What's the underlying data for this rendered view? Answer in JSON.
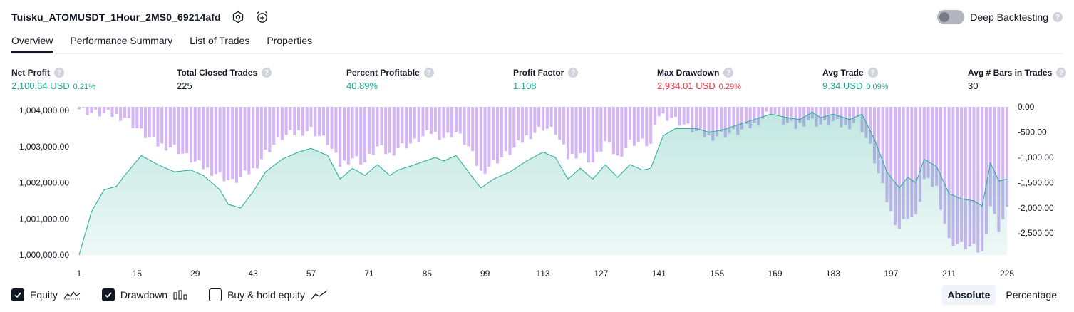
{
  "header": {
    "title": "Tuisku_ATOMUSDT_1Hour_2MS0_69214afd",
    "settings_icon": "gear-icon",
    "alert_icon": "alarm-clock-plus-icon",
    "deep_backtesting_label": "Deep Backtesting",
    "help_glyph": "?"
  },
  "tabs": [
    {
      "label": "Overview"
    },
    {
      "label": "Performance Summary"
    },
    {
      "label": "List of Trades"
    },
    {
      "label": "Properties"
    }
  ],
  "metrics": [
    {
      "label": "Net Profit",
      "value": "2,100.64 USD",
      "pct": "0.21%"
    },
    {
      "label": "Total Closed Trades",
      "value": "225",
      "pct": ""
    },
    {
      "label": "Percent Profitable",
      "value": "40.89%",
      "pct": ""
    },
    {
      "label": "Profit Factor",
      "value": "1.108",
      "pct": ""
    },
    {
      "label": "Max Drawdown",
      "value": "2,934.01 USD",
      "pct": "0.29%"
    },
    {
      "label": "Avg Trade",
      "value": "9.34 USD",
      "pct": "0.09%"
    },
    {
      "label": "Avg # Bars in Trades",
      "value": "30",
      "pct": ""
    }
  ],
  "colors": {
    "positive": "#22ab94",
    "negative": "#f23645",
    "equity_line": "#22ab94",
    "drawdown_bar": "#d4b5f5"
  },
  "chart_data": {
    "type": "area",
    "x_ticks": [
      "1",
      "15",
      "29",
      "43",
      "57",
      "71",
      "85",
      "99",
      "113",
      "127",
      "141",
      "155",
      "169",
      "183",
      "197",
      "211",
      "225"
    ],
    "y_left_ticks": [
      "1,004,000.00",
      "1,003,000.00",
      "1,002,000.00",
      "1,001,000.00",
      "1,000,000.00"
    ],
    "y_left_range": [
      1000000,
      1004000
    ],
    "y_right_ticks": [
      "0.00",
      "-500.00",
      "-1,000.00",
      "-1,500.00",
      "-2,000.00",
      "-2,500.00"
    ],
    "y_right_range": [
      -2934.01,
      0
    ],
    "equity_keypoints": [
      [
        1,
        1000000
      ],
      [
        4,
        1001200
      ],
      [
        7,
        1001800
      ],
      [
        10,
        1001900
      ],
      [
        12,
        1002200
      ],
      [
        16,
        1002750
      ],
      [
        20,
        1002500
      ],
      [
        24,
        1002300
      ],
      [
        28,
        1002350
      ],
      [
        31,
        1002200
      ],
      [
        35,
        1001800
      ],
      [
        37,
        1001400
      ],
      [
        40,
        1001300
      ],
      [
        43,
        1001750
      ],
      [
        46,
        1002300
      ],
      [
        50,
        1002650
      ],
      [
        54,
        1002850
      ],
      [
        57,
        1002950
      ],
      [
        61,
        1002750
      ],
      [
        64,
        1002100
      ],
      [
        67,
        1002400
      ],
      [
        70,
        1002200
      ],
      [
        73,
        1002500
      ],
      [
        76,
        1002200
      ],
      [
        78,
        1002350
      ],
      [
        82,
        1002500
      ],
      [
        87,
        1002700
      ],
      [
        89,
        1002600
      ],
      [
        92,
        1002750
      ],
      [
        95,
        1002300
      ],
      [
        98,
        1001850
      ],
      [
        101,
        1002100
      ],
      [
        105,
        1002300
      ],
      [
        109,
        1002600
      ],
      [
        113,
        1002850
      ],
      [
        116,
        1002700
      ],
      [
        119,
        1002100
      ],
      [
        122,
        1002400
      ],
      [
        125,
        1002100
      ],
      [
        128,
        1002500
      ],
      [
        131,
        1002150
      ],
      [
        134,
        1002500
      ],
      [
        137,
        1002350
      ],
      [
        139,
        1002400
      ],
      [
        142,
        1003300
      ],
      [
        145,
        1003500
      ],
      [
        150,
        1003500
      ],
      [
        153,
        1003400
      ],
      [
        156,
        1003450
      ],
      [
        160,
        1003600
      ],
      [
        164,
        1003750
      ],
      [
        168,
        1003900
      ],
      [
        172,
        1003800
      ],
      [
        175,
        1003750
      ],
      [
        178,
        1003950
      ],
      [
        180,
        1003800
      ],
      [
        183,
        1003900
      ],
      [
        187,
        1003750
      ],
      [
        190,
        1003900
      ],
      [
        193,
        1003200
      ],
      [
        196,
        1002300
      ],
      [
        199,
        1001850
      ],
      [
        201,
        1002150
      ],
      [
        203,
        1002000
      ],
      [
        205,
        1002650
      ],
      [
        208,
        1002450
      ],
      [
        211,
        1001700
      ],
      [
        214,
        1001550
      ],
      [
        217,
        1001500
      ],
      [
        219,
        1001350
      ],
      [
        221,
        1002550
      ],
      [
        223,
        1002050
      ],
      [
        225,
        1002100
      ]
    ],
    "drawdown_keypoints": [
      [
        1,
        -30
      ],
      [
        4,
        -120
      ],
      [
        8,
        -150
      ],
      [
        12,
        -200
      ],
      [
        16,
        -500
      ],
      [
        20,
        -750
      ],
      [
        24,
        -800
      ],
      [
        28,
        -1050
      ],
      [
        31,
        -1200
      ],
      [
        35,
        -1350
      ],
      [
        38,
        -1500
      ],
      [
        40,
        -1400
      ],
      [
        43,
        -1250
      ],
      [
        46,
        -900
      ],
      [
        50,
        -600
      ],
      [
        54,
        -500
      ],
      [
        57,
        -450
      ],
      [
        61,
        -700
      ],
      [
        64,
        -1150
      ],
      [
        67,
        -1000
      ],
      [
        70,
        -1100
      ],
      [
        73,
        -800
      ],
      [
        76,
        -950
      ],
      [
        78,
        -800
      ],
      [
        82,
        -700
      ],
      [
        86,
        -500
      ],
      [
        89,
        -600
      ],
      [
        92,
        -500
      ],
      [
        95,
        -800
      ],
      [
        98,
        -1300
      ],
      [
        101,
        -1100
      ],
      [
        105,
        -900
      ],
      [
        109,
        -600
      ],
      [
        113,
        -400
      ],
      [
        116,
        -500
      ],
      [
        119,
        -1000
      ],
      [
        122,
        -900
      ],
      [
        125,
        -1100
      ],
      [
        128,
        -700
      ],
      [
        131,
        -1000
      ],
      [
        134,
        -700
      ],
      [
        137,
        -700
      ],
      [
        139,
        -750
      ],
      [
        141,
        -150
      ],
      [
        144,
        -200
      ],
      [
        147,
        -350
      ],
      [
        150,
        -500
      ],
      [
        153,
        -600
      ],
      [
        156,
        -550
      ],
      [
        160,
        -500
      ],
      [
        164,
        -350
      ],
      [
        168,
        -80
      ],
      [
        171,
        -300
      ],
      [
        174,
        -400
      ],
      [
        177,
        -250
      ],
      [
        180,
        -350
      ],
      [
        183,
        -300
      ],
      [
        186,
        -400
      ],
      [
        189,
        -250
      ],
      [
        192,
        -800
      ],
      [
        195,
        -1600
      ],
      [
        197,
        -2100
      ],
      [
        199,
        -2400
      ],
      [
        201,
        -2150
      ],
      [
        203,
        -2200
      ],
      [
        205,
        -1450
      ],
      [
        208,
        -1600
      ],
      [
        211,
        -2650
      ],
      [
        214,
        -2750
      ],
      [
        217,
        -2800
      ],
      [
        219,
        -2900
      ],
      [
        221,
        -1950
      ],
      [
        223,
        -2400
      ],
      [
        225,
        -2050
      ]
    ],
    "ylabel": "",
    "xlabel": "",
    "grid": false
  },
  "legend": {
    "items": [
      {
        "label": "Equity",
        "checked": true,
        "icon": "equity-line-icon"
      },
      {
        "label": "Drawdown",
        "checked": true,
        "icon": "bars-icon"
      },
      {
        "label": "Buy & hold equity",
        "checked": false,
        "icon": "trend-line-icon"
      }
    ]
  },
  "scale": {
    "absolute": "Absolute",
    "percentage": "Percentage",
    "selected": "Absolute"
  }
}
